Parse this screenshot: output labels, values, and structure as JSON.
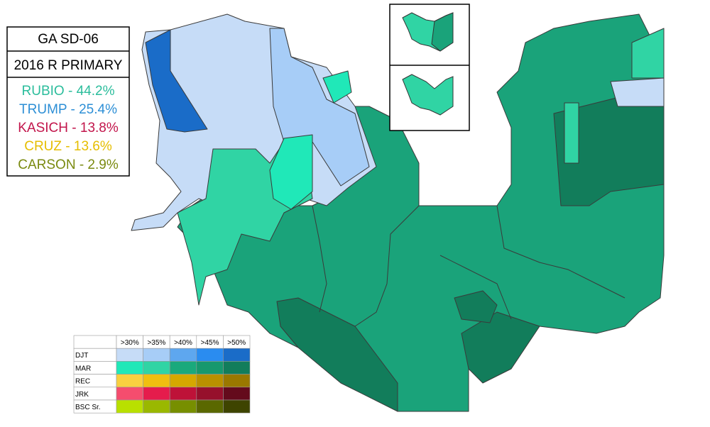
{
  "title_box": {
    "district": "GA SD-06",
    "race": "2016 R PRIMARY",
    "results": [
      {
        "text": "RUBIO - 44.2%",
        "color": "#2bbd9c"
      },
      {
        "text": "TRUMP - 25.4%",
        "color": "#2d8fd6"
      },
      {
        "text": "KASICH - 13.8%",
        "color": "#c2154b"
      },
      {
        "text": "CRUZ - 13.6%",
        "color": "#e6be00"
      },
      {
        "text": "CARSON - 2.9%",
        "color": "#7a8a10"
      }
    ]
  },
  "legend_table": {
    "columns": [
      ">30%",
      ">35%",
      ">40%",
      ">45%",
      ">50%"
    ],
    "rows": [
      {
        "label": "DJT",
        "colors": [
          "#c6dcf7",
          "#a7cdf7",
          "#5ea7ef",
          "#2a8cf0",
          "#1a6cc8"
        ]
      },
      {
        "label": "MAR",
        "colors": [
          "#20e8b8",
          "#30d4a4",
          "#1aa97c",
          "#17986e",
          "#127d5b"
        ]
      },
      {
        "label": "REC",
        "colors": [
          "#f9d040",
          "#f0bf10",
          "#d5a800",
          "#b99000",
          "#9a7800"
        ]
      },
      {
        "label": "JRK",
        "colors": [
          "#f54d6e",
          "#e51c4c",
          "#be1238",
          "#96102c",
          "#640a1c"
        ]
      },
      {
        "label": "BSC Sr.",
        "colors": [
          "#b9e000",
          "#9ab800",
          "#778f00",
          "#5a6800",
          "#3e4400"
        ]
      }
    ]
  }
}
